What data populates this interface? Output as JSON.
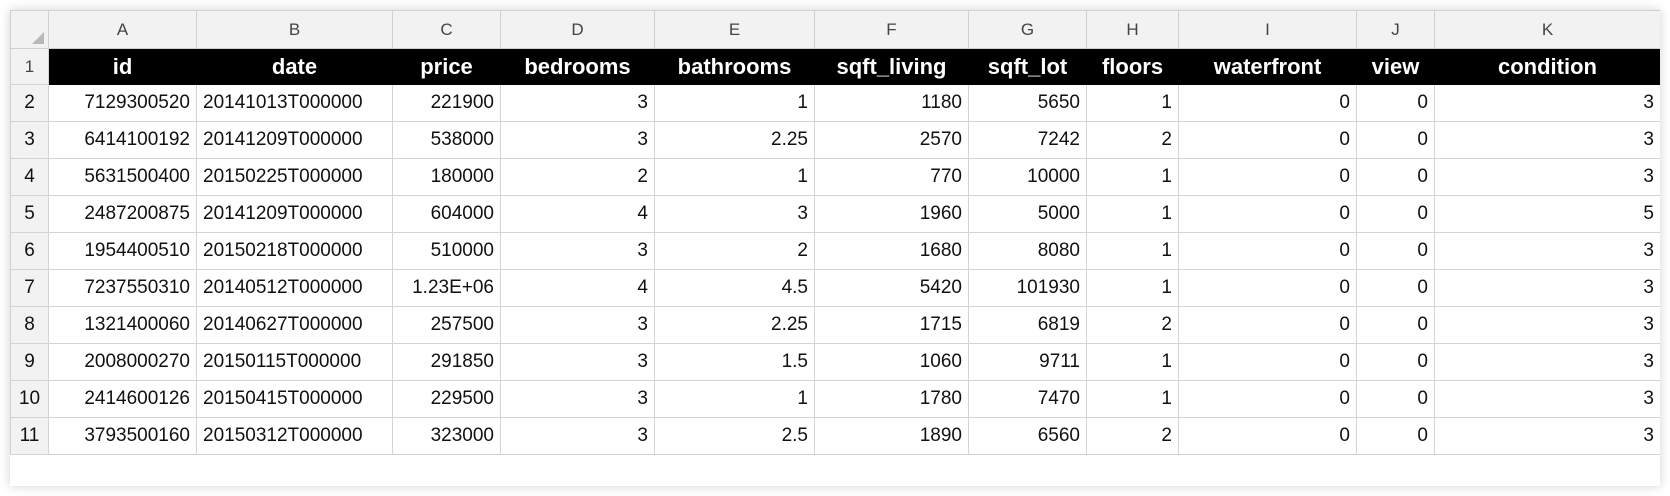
{
  "columns": [
    "A",
    "B",
    "C",
    "D",
    "E",
    "F",
    "G",
    "H",
    "I",
    "J",
    "K"
  ],
  "headers": [
    "id",
    "date",
    "price",
    "bedrooms",
    "bathrooms",
    "sqft_living",
    "sqft_lot",
    "floors",
    "waterfront",
    "view",
    "condition"
  ],
  "header_row_number": "1",
  "rows": [
    {
      "num": "2",
      "cells": [
        "7129300520",
        "20141013T000000",
        "221900",
        "3",
        "1",
        "1180",
        "5650",
        "1",
        "0",
        "0",
        "3"
      ]
    },
    {
      "num": "3",
      "cells": [
        "6414100192",
        "20141209T000000",
        "538000",
        "3",
        "2.25",
        "2570",
        "7242",
        "2",
        "0",
        "0",
        "3"
      ]
    },
    {
      "num": "4",
      "cells": [
        "5631500400",
        "20150225T000000",
        "180000",
        "2",
        "1",
        "770",
        "10000",
        "1",
        "0",
        "0",
        "3"
      ]
    },
    {
      "num": "5",
      "cells": [
        "2487200875",
        "20141209T000000",
        "604000",
        "4",
        "3",
        "1960",
        "5000",
        "1",
        "0",
        "0",
        "5"
      ]
    },
    {
      "num": "6",
      "cells": [
        "1954400510",
        "20150218T000000",
        "510000",
        "3",
        "2",
        "1680",
        "8080",
        "1",
        "0",
        "0",
        "3"
      ]
    },
    {
      "num": "7",
      "cells": [
        "7237550310",
        "20140512T000000",
        "1.23E+06",
        "4",
        "4.5",
        "5420",
        "101930",
        "1",
        "0",
        "0",
        "3"
      ]
    },
    {
      "num": "8",
      "cells": [
        "1321400060",
        "20140627T000000",
        "257500",
        "3",
        "2.25",
        "1715",
        "6819",
        "2",
        "0",
        "0",
        "3"
      ]
    },
    {
      "num": "9",
      "cells": [
        "2008000270",
        "20150115T000000",
        "291850",
        "3",
        "1.5",
        "1060",
        "9711",
        "1",
        "0",
        "0",
        "3"
      ]
    },
    {
      "num": "10",
      "cells": [
        "2414600126",
        "20150415T000000",
        "229500",
        "3",
        "1",
        "1780",
        "7470",
        "1",
        "0",
        "0",
        "3"
      ]
    },
    {
      "num": "11",
      "cells": [
        "3793500160",
        "20150312T000000",
        "323000",
        "3",
        "2.5",
        "1890",
        "6560",
        "2",
        "0",
        "0",
        "3"
      ]
    }
  ]
}
